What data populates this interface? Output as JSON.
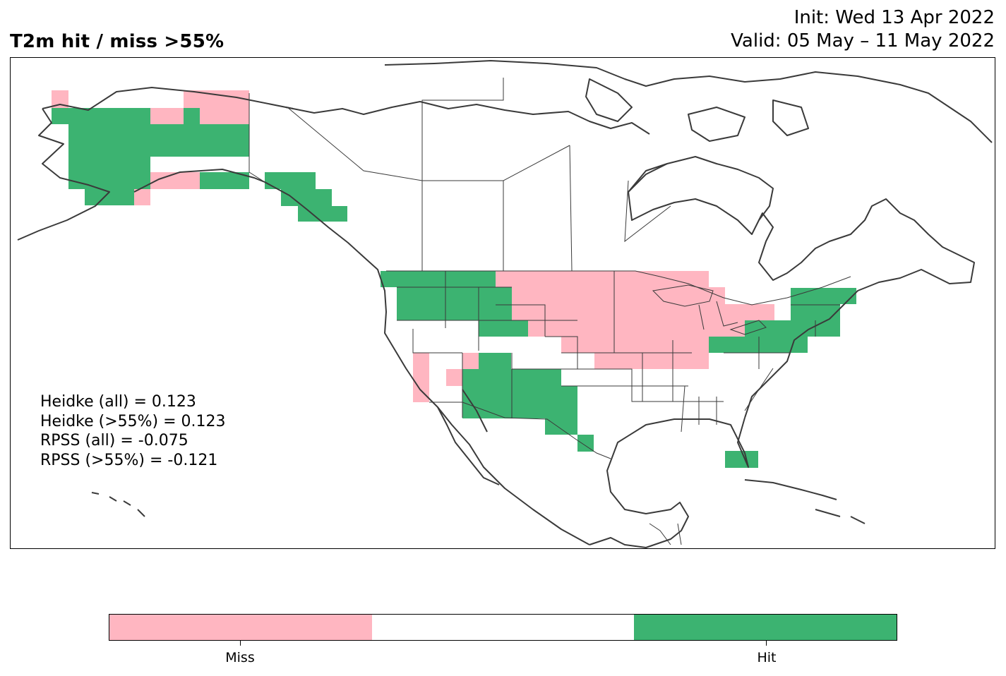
{
  "header": {
    "title": "T2m hit / miss  >55%",
    "init": "Init: Wed 13 Apr 2022",
    "valid": "Valid: 05 May – 11 May 2022"
  },
  "stats": [
    "Heidke (all) = 0.123",
    "Heidke (>55%) = 0.123",
    "RPSS (all) = -0.075",
    "RPSS (>55%) = -0.121"
  ],
  "legend": {
    "segments": [
      {
        "label": "Miss",
        "color": "#ffb6c1"
      },
      {
        "label": "",
        "color": "#ffffff"
      },
      {
        "label": "Hit",
        "color": "#3cb371"
      }
    ]
  },
  "colors": {
    "miss": "#ffb6c1",
    "hit": "#3cb371",
    "coast": "#3a3a3a"
  }
}
